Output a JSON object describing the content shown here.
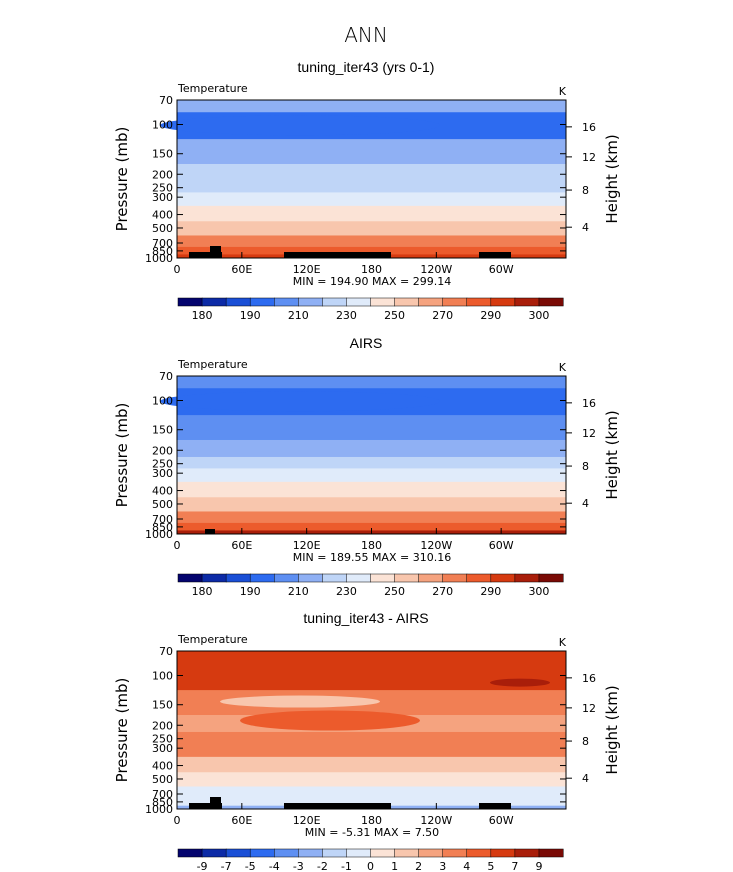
{
  "figure_title": "ANN",
  "chart_data": [
    {
      "type": "heatmap",
      "title": "tuning_iter43 (yrs 0-1)",
      "variable": "Temperature",
      "units": "K",
      "ylabel": "Pressure (mb)",
      "y2label": "Height (km)",
      "x_ticks": [
        "0",
        "60E",
        "120E",
        "180",
        "120W",
        "60W"
      ],
      "y_ticks": [
        "70",
        "100",
        "150",
        "200",
        "250",
        "300",
        "400",
        "500",
        "700",
        "850",
        "1000"
      ],
      "y2_ticks": [
        "4",
        "8",
        "12",
        "16"
      ],
      "stats": "MIN = 194.90   MAX = 299.14",
      "colorbar_labels": [
        "180",
        "190",
        "210",
        "230",
        "250",
        "270",
        "290",
        "300"
      ],
      "levels_mb": [
        70,
        100,
        150,
        200,
        250,
        300,
        400,
        500,
        700,
        850,
        1000
      ],
      "temperature_K": [
        210,
        197,
        210,
        220,
        229,
        236,
        248,
        258,
        272,
        282,
        290
      ],
      "min": 194.9,
      "max": 299.14
    },
    {
      "type": "heatmap",
      "title": "AIRS",
      "variable": "Temperature",
      "units": "K",
      "ylabel": "Pressure (mb)",
      "y2label": "Height (km)",
      "x_ticks": [
        "0",
        "60E",
        "120E",
        "180",
        "120W",
        "60W"
      ],
      "y_ticks": [
        "70",
        "100",
        "150",
        "200",
        "250",
        "300",
        "400",
        "500",
        "700",
        "850",
        "1000"
      ],
      "y2_ticks": [
        "4",
        "8",
        "12",
        "16"
      ],
      "stats": "MIN = 189.55   MAX = 310.16",
      "colorbar_labels": [
        "180",
        "190",
        "210",
        "230",
        "250",
        "270",
        "290",
        "300"
      ],
      "levels_mb": [
        70,
        100,
        150,
        200,
        250,
        300,
        400,
        500,
        700,
        850,
        1000
      ],
      "temperature_K": [
        205,
        195,
        208,
        218,
        228,
        235,
        247,
        258,
        272,
        284,
        295
      ],
      "min": 189.55,
      "max": 310.16
    },
    {
      "type": "heatmap",
      "title": "tuning_iter43 - AIRS",
      "variable": "Temperature",
      "units": "K",
      "ylabel": "Pressure (mb)",
      "y2label": "Height (km)",
      "x_ticks": [
        "0",
        "60E",
        "120E",
        "180",
        "120W",
        "60W"
      ],
      "y_ticks": [
        "70",
        "100",
        "150",
        "200",
        "250",
        "300",
        "400",
        "500",
        "700",
        "850",
        "1000"
      ],
      "y2_ticks": [
        "4",
        "8",
        "12",
        "16"
      ],
      "stats": "MIN =  -5.31   MAX =    7.50",
      "colorbar_labels": [
        "-9",
        "-7",
        "-5",
        "-4",
        "-3",
        "-2",
        "-1",
        "0",
        "1",
        "2",
        "3",
        "4",
        "5",
        "7",
        "9"
      ],
      "levels_mb": [
        70,
        100,
        150,
        200,
        250,
        300,
        400,
        500,
        700,
        850,
        1000
      ],
      "difference_K": [
        5,
        6,
        3,
        2,
        3,
        3,
        1.5,
        0.5,
        -0.5,
        -1,
        -2
      ],
      "min": -5.31,
      "max": 7.5
    }
  ],
  "colors": {
    "abs_scale": [
      "#04046e",
      "#0c2aa6",
      "#1a4fd6",
      "#2d6bf0",
      "#5e8ff2",
      "#8fb0f4",
      "#bfd5f7",
      "#e0ebfa",
      "#fbe3d6",
      "#f8c6ad",
      "#f5a37f",
      "#f17f54",
      "#ec5b2c",
      "#d63a10",
      "#a91e0a",
      "#7a0a05"
    ],
    "diff_scale": [
      "#04046e",
      "#0c2aa6",
      "#1a4fd6",
      "#2d6bf0",
      "#5e8ff2",
      "#8fb0f4",
      "#bfd5f7",
      "#e0ebfa",
      "#fbe3d6",
      "#f8c6ad",
      "#f5a37f",
      "#f17f54",
      "#ec5b2c",
      "#d63a10",
      "#a91e0a",
      "#7a0a05"
    ],
    "terrain": "#000000"
  }
}
